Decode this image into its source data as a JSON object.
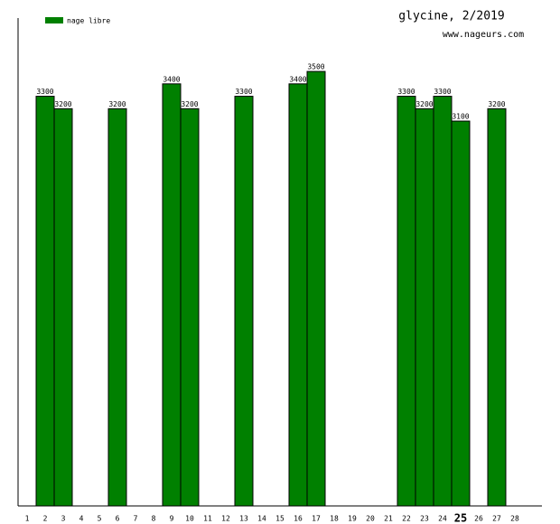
{
  "chart_data": {
    "type": "bar",
    "title": "glycine, 2/2019",
    "subtitle": "www.nageurs.com",
    "categories": [
      "1",
      "2",
      "3",
      "4",
      "5",
      "6",
      "7",
      "8",
      "9",
      "10",
      "11",
      "12",
      "13",
      "14",
      "15",
      "16",
      "17",
      "18",
      "19",
      "20",
      "21",
      "22",
      "23",
      "24",
      "25",
      "26",
      "27",
      "28"
    ],
    "series": [
      {
        "name": "nage libre",
        "color": "#008000",
        "values": [
          null,
          3300,
          3200,
          null,
          null,
          3200,
          null,
          null,
          3400,
          3200,
          null,
          null,
          3300,
          null,
          null,
          3400,
          3500,
          null,
          null,
          null,
          null,
          3300,
          3200,
          3300,
          3100,
          null,
          3200,
          null
        ]
      }
    ],
    "ylim": [
      0,
      3930
    ],
    "highlight_index": 24,
    "legend": "top-left"
  }
}
